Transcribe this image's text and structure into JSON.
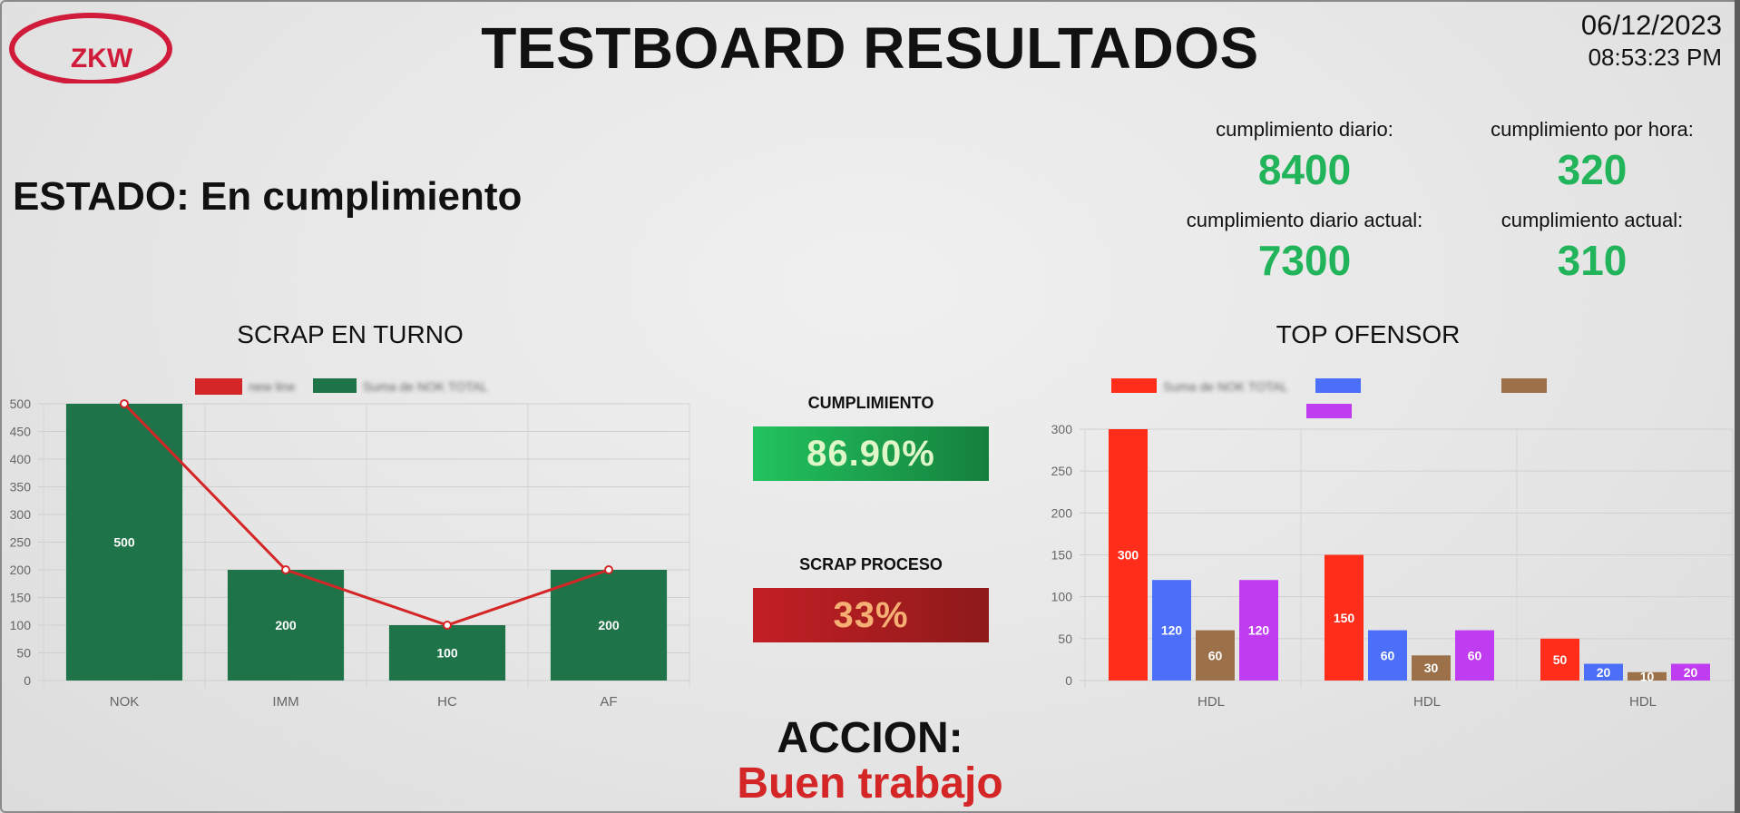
{
  "header": {
    "logo_text": "ZKW",
    "title": "TESTBOARD RESULTADOS",
    "date": "06/12/2023",
    "time": "08:53:23 PM"
  },
  "status": {
    "text": "ESTADO: En cumplimiento"
  },
  "kpis": {
    "daily_label": "cumplimiento diario:",
    "daily_value": "8400",
    "hourly_label": "cumplimiento por hora:",
    "hourly_value": "320",
    "daily_actual_label": "cumplimiento diario actual:",
    "daily_actual_value": "7300",
    "actual_label": "cumplimiento actual:",
    "actual_value": "310"
  },
  "center": {
    "cumplimiento_label": "CUMPLIMIENTO",
    "cumplimiento_value": "86.90%",
    "scrap_label": "SCRAP PROCESO",
    "scrap_value": "33%"
  },
  "accion": {
    "label": "ACCION:",
    "message": "Buen trabajo"
  },
  "colors": {
    "kpi_green": "#22b45a",
    "bar_green": "#1e7448",
    "line_red": "#d42626",
    "series_red": "#ff2d1a",
    "series_blue": "#4b6ff8",
    "series_brown": "#9c7049",
    "series_purple": "#c03cf0"
  },
  "chart_data": [
    {
      "type": "bar",
      "title": "SCRAP EN TURNO",
      "categories": [
        "NOK",
        "IMM",
        "HC",
        "AF"
      ],
      "series": [
        {
          "name": "new line",
          "type": "line",
          "values": [
            500,
            200,
            100,
            200
          ],
          "color": "#d42626"
        },
        {
          "name": "Suma de NOK TOTAL",
          "type": "bar",
          "values": [
            500,
            200,
            100,
            200
          ],
          "color": "#1e7448"
        }
      ],
      "ylim": [
        0,
        500
      ],
      "yticks": [
        0,
        50,
        100,
        150,
        200,
        250,
        300,
        350,
        400,
        450,
        500
      ],
      "grid": true,
      "legend": "top"
    },
    {
      "type": "bar",
      "title": "TOP OFENSOR",
      "categories": [
        "HDL",
        "HDL",
        "HDL"
      ],
      "series": [
        {
          "name": "Suma de NOK TOTAL",
          "values": [
            300,
            150,
            50
          ],
          "color": "#ff2d1a"
        },
        {
          "name": "",
          "values": [
            120,
            60,
            20
          ],
          "color": "#4b6ff8"
        },
        {
          "name": "",
          "values": [
            60,
            30,
            10
          ],
          "color": "#9c7049"
        },
        {
          "name": "",
          "values": [
            120,
            60,
            20
          ],
          "color": "#c03cf0"
        }
      ],
      "ylim": [
        0,
        300
      ],
      "yticks": [
        0,
        50,
        100,
        150,
        200,
        250,
        300
      ],
      "grid": true,
      "legend": "top"
    }
  ]
}
